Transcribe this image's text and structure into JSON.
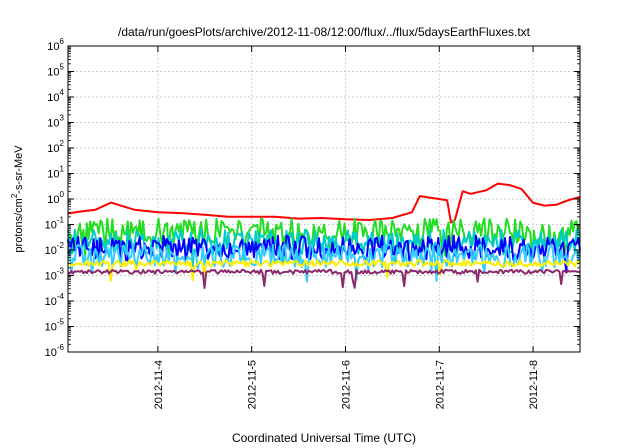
{
  "chart_data": {
    "type": "line",
    "title": "/data/run/goesPlots/archive/2012-11-08/12:00/flux/../flux/5daysEarthFluxes.txt",
    "xlabel": "Coordinated Universal Time (UTC)",
    "ylabel": "protons/cm2-s-sr-MeV",
    "yscale": "log",
    "ylim": [
      1e-06,
      1000000.0
    ],
    "y_tick_exponents": [
      -6,
      -5,
      -4,
      -3,
      -2,
      -1,
      0,
      1,
      2,
      3,
      4,
      5,
      6
    ],
    "xlim": [
      "2012-11-03 01:00",
      "2012-11-08 12:00"
    ],
    "x_ticks": [
      "2012-11-4",
      "2012-11-5",
      "2012-11-6",
      "2012-11-7",
      "2012-11-8"
    ],
    "grid": true,
    "series": [
      {
        "color": "#ff0000",
        "points": [
          [
            "2012-11-03 01:00",
            0.27
          ],
          [
            "2012-11-03 04:00",
            0.32
          ],
          [
            "2012-11-03 08:00",
            0.38
          ],
          [
            "2012-11-03 12:00",
            0.72
          ],
          [
            "2012-11-03 15:00",
            0.52
          ],
          [
            "2012-11-03 18:00",
            0.38
          ],
          [
            "2012-11-04 00:00",
            0.3
          ],
          [
            "2012-11-04 06:00",
            0.28
          ],
          [
            "2012-11-04 12:00",
            0.24
          ],
          [
            "2012-11-04 18:00",
            0.2
          ],
          [
            "2012-11-05 00:00",
            0.2
          ],
          [
            "2012-11-05 06:00",
            0.2
          ],
          [
            "2012-11-05 12:00",
            0.17
          ],
          [
            "2012-11-05 18:00",
            0.18
          ],
          [
            "2012-11-06 00:00",
            0.16
          ],
          [
            "2012-11-06 06:00",
            0.15
          ],
          [
            "2012-11-06 12:00",
            0.18
          ],
          [
            "2012-11-06 17:00",
            0.3
          ],
          [
            "2012-11-06 19:00",
            1.3
          ],
          [
            "2012-11-06 22:00",
            1.1
          ],
          [
            "2012-11-07 02:00",
            0.9
          ],
          [
            "2012-11-07 03:00",
            0.12
          ],
          [
            "2012-11-07 04:00",
            0.15
          ],
          [
            "2012-11-07 06:00",
            2.0
          ],
          [
            "2012-11-07 08:00",
            1.6
          ],
          [
            "2012-11-07 12:00",
            2.2
          ],
          [
            "2012-11-07 15:00",
            4.0
          ],
          [
            "2012-11-07 18:00",
            3.5
          ],
          [
            "2012-11-07 21:00",
            2.5
          ],
          [
            "2012-11-08 00:00",
            0.7
          ],
          [
            "2012-11-08 03:00",
            0.55
          ],
          [
            "2012-11-08 06:00",
            0.6
          ],
          [
            "2012-11-08 09:00",
            0.9
          ],
          [
            "2012-11-08 12:00",
            1.2
          ]
        ]
      },
      {
        "color": "#22dd22",
        "level": 0.05,
        "spread": 0.55
      },
      {
        "color": "#00cccc",
        "level": 0.02,
        "spread": 0.5
      },
      {
        "color": "#0000ff",
        "level": 0.012,
        "spread": 0.5
      },
      {
        "color": "#33ccff",
        "level": 0.006,
        "spread": 0.45
      },
      {
        "color": "#ffee00",
        "level": 0.003,
        "spread": 0.12
      },
      {
        "color": "#8b2a6b",
        "level": 0.0014,
        "spread": 0.08
      }
    ]
  }
}
